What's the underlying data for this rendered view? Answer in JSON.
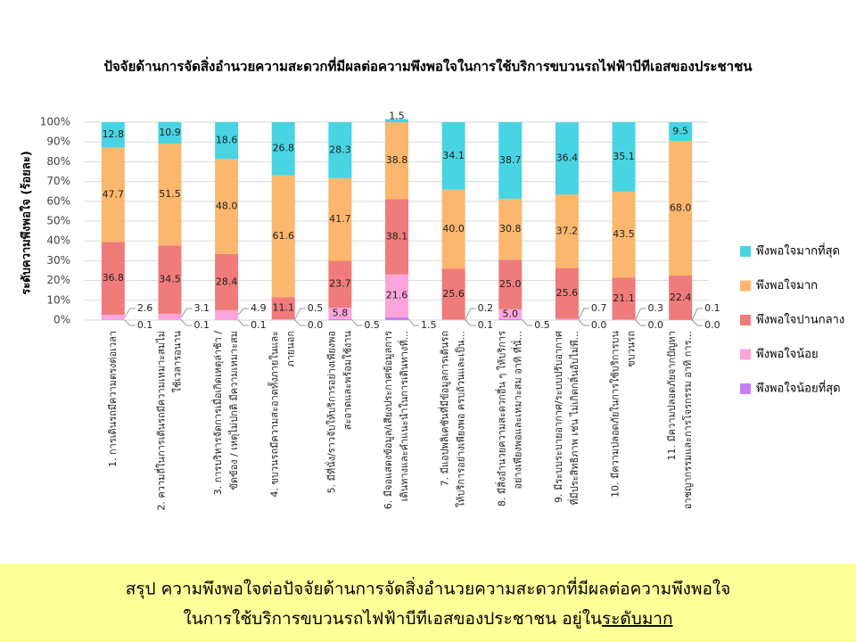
{
  "chart_data": {
    "type": "stacked_bar",
    "title": "ปัจจัยด้านการจัดสิ่งอำนวยความสะดวกที่มีผลต่อความพึงพอใจในการใช้บริการขบวนรถไฟฟ้าบีทีเอสของประชาชน",
    "ylabel": "ระดับความพึงพอใจ (ร้อยละ)",
    "categories": [
      [
        "1. การเดินรถมีความตรงต่อเวลา"
      ],
      [
        "2. ความถี่ในการเดินรถมีความเหมาะสมไม่",
        "ใช้เวลารอนาน"
      ],
      [
        "3. การบริหารจัดการเมื่อเกิดเหตุล่าช้า /",
        "ขัดข้อง / เหตุไม่ปกติ มีความเหมาะสม"
      ],
      [
        "4. ขบวนรถมีความสะอาดทั้งภายในและ",
        "ภายนอก"
      ],
      [
        "5. มีที่นั่ง/ราวจับให้บริการอย่างเพียงพอ",
        "สะอาดและพร้อมใช้งาน"
      ],
      [
        "6. มีจอแสดงข้อมูล/เสียงประกาศข้อมูลการ",
        "เดินทางและคำแนะนำในการเดินทางที่..."
      ],
      [
        "7. มีแอปพลิเคชันที่มีข้อมูลการเดินรถ",
        "ให้บริการอย่างเพียงพอ ครบถ้วนและเป็น..."
      ],
      [
        "8. มีสิ่งอำนวยความสะดวกอื่น ๆ ให้บริการ",
        "อย่างเพียงพอและเหมาะสม อาทิ ที่นั่..."
      ],
      [
        "9. มีระบบระบายอากาศ/ระบบปรับอากาศ",
        "ที่มีประสิทธิภาพ เช่น ไม่เกิดกลิ่นอับไม่พึ..."
      ],
      [
        "10. มีความปลอดภัยในการใช้บริการบน",
        "ขบวนรถ"
      ],
      [
        "11. มีความปลอดภัยจากปัญหา",
        "อาชญากรรมและการโจรกรรม อาทิ การ..."
      ]
    ],
    "series": [
      {
        "name": "พึงพอใจน้อยที่สุด",
        "color": "#c47ff2",
        "values": [
          0.1,
          0.1,
          0.1,
          0.0,
          0.5,
          1.5,
          0.1,
          0.5,
          0.0,
          0.0,
          0.0
        ],
        "value_labels": [
          "0.1",
          "0.1",
          "0.1",
          "0.0",
          "0.5",
          "1.5",
          "0.1",
          "0.5",
          "0.0",
          "0.0",
          "0.0"
        ]
      },
      {
        "name": "พึงพอใจน้อย",
        "color": "#fca5dc",
        "values": [
          2.6,
          3.1,
          4.9,
          0.5,
          5.8,
          21.6,
          0.2,
          5.0,
          0.7,
          0.3,
          0.1
        ],
        "value_labels": [
          "2.6",
          "3.1",
          "4.9",
          "0.5",
          "5.8",
          "21.6",
          "0.2",
          "5.0",
          "0.7",
          "0.3",
          "0.1"
        ]
      },
      {
        "name": "พึงพอใจปานกลาง",
        "color": "#ef7b7b",
        "values": [
          36.8,
          34.5,
          28.4,
          11.1,
          23.7,
          38.1,
          25.6,
          25.0,
          25.6,
          21.1,
          22.4
        ],
        "value_labels": [
          "36.8",
          "34.5",
          "28.4",
          "11.1",
          "23.7",
          "38.1",
          "25.6",
          "25.0",
          "25.6",
          "21.1",
          "22.4"
        ]
      },
      {
        "name": "พึงพอใจมาก",
        "color": "#fbb76d",
        "values": [
          47.7,
          51.5,
          48.0,
          61.6,
          41.7,
          38.8,
          40.0,
          30.8,
          37.2,
          43.5,
          68.0
        ],
        "value_labels": [
          "47.7",
          "51.5",
          "48.0",
          "61.6",
          "41.7",
          "38.8",
          "40.0",
          "30.8",
          "37.2",
          "43.5",
          "68.0"
        ]
      },
      {
        "name": "พึงพอใจมากที่สุด",
        "color": "#48d4e2",
        "values": [
          12.8,
          10.9,
          18.6,
          26.8,
          28.3,
          1.5,
          34.1,
          38.7,
          36.4,
          35.1,
          9.5
        ],
        "value_labels": [
          "12.8",
          "10.9",
          "18.6",
          "26.8",
          "28.3",
          "1.5",
          "34.1",
          "38.7",
          "36.4",
          "35.1",
          "9.5"
        ]
      }
    ],
    "ylim": [
      0,
      100
    ],
    "yticks": [
      {
        "value": 0,
        "label": "0%"
      },
      {
        "value": 10,
        "label": "10%"
      },
      {
        "value": 20,
        "label": "20%"
      },
      {
        "value": 30,
        "label": "30%"
      },
      {
        "value": 40,
        "label": "40%"
      },
      {
        "value": 50,
        "label": "50%"
      },
      {
        "value": 60,
        "label": "60%"
      },
      {
        "value": 70,
        "label": "70%"
      },
      {
        "value": 80,
        "label": "80%"
      },
      {
        "value": 90,
        "label": "90%"
      },
      {
        "value": 100,
        "label": "100%"
      }
    ],
    "grid": true,
    "legend": "right"
  },
  "summary": {
    "line1": "สรุป ความพึงพอใจต่อปัจจัยด้านการจัดสิ่งอำนวยความสะดวกที่มีผลต่อความพึงพอใจ",
    "line2": "ในการใช้บริการขบวนรถไฟฟ้าบีทีเอสของประชาชน อยู่ใน",
    "emphasis": "ระดับมาก"
  }
}
